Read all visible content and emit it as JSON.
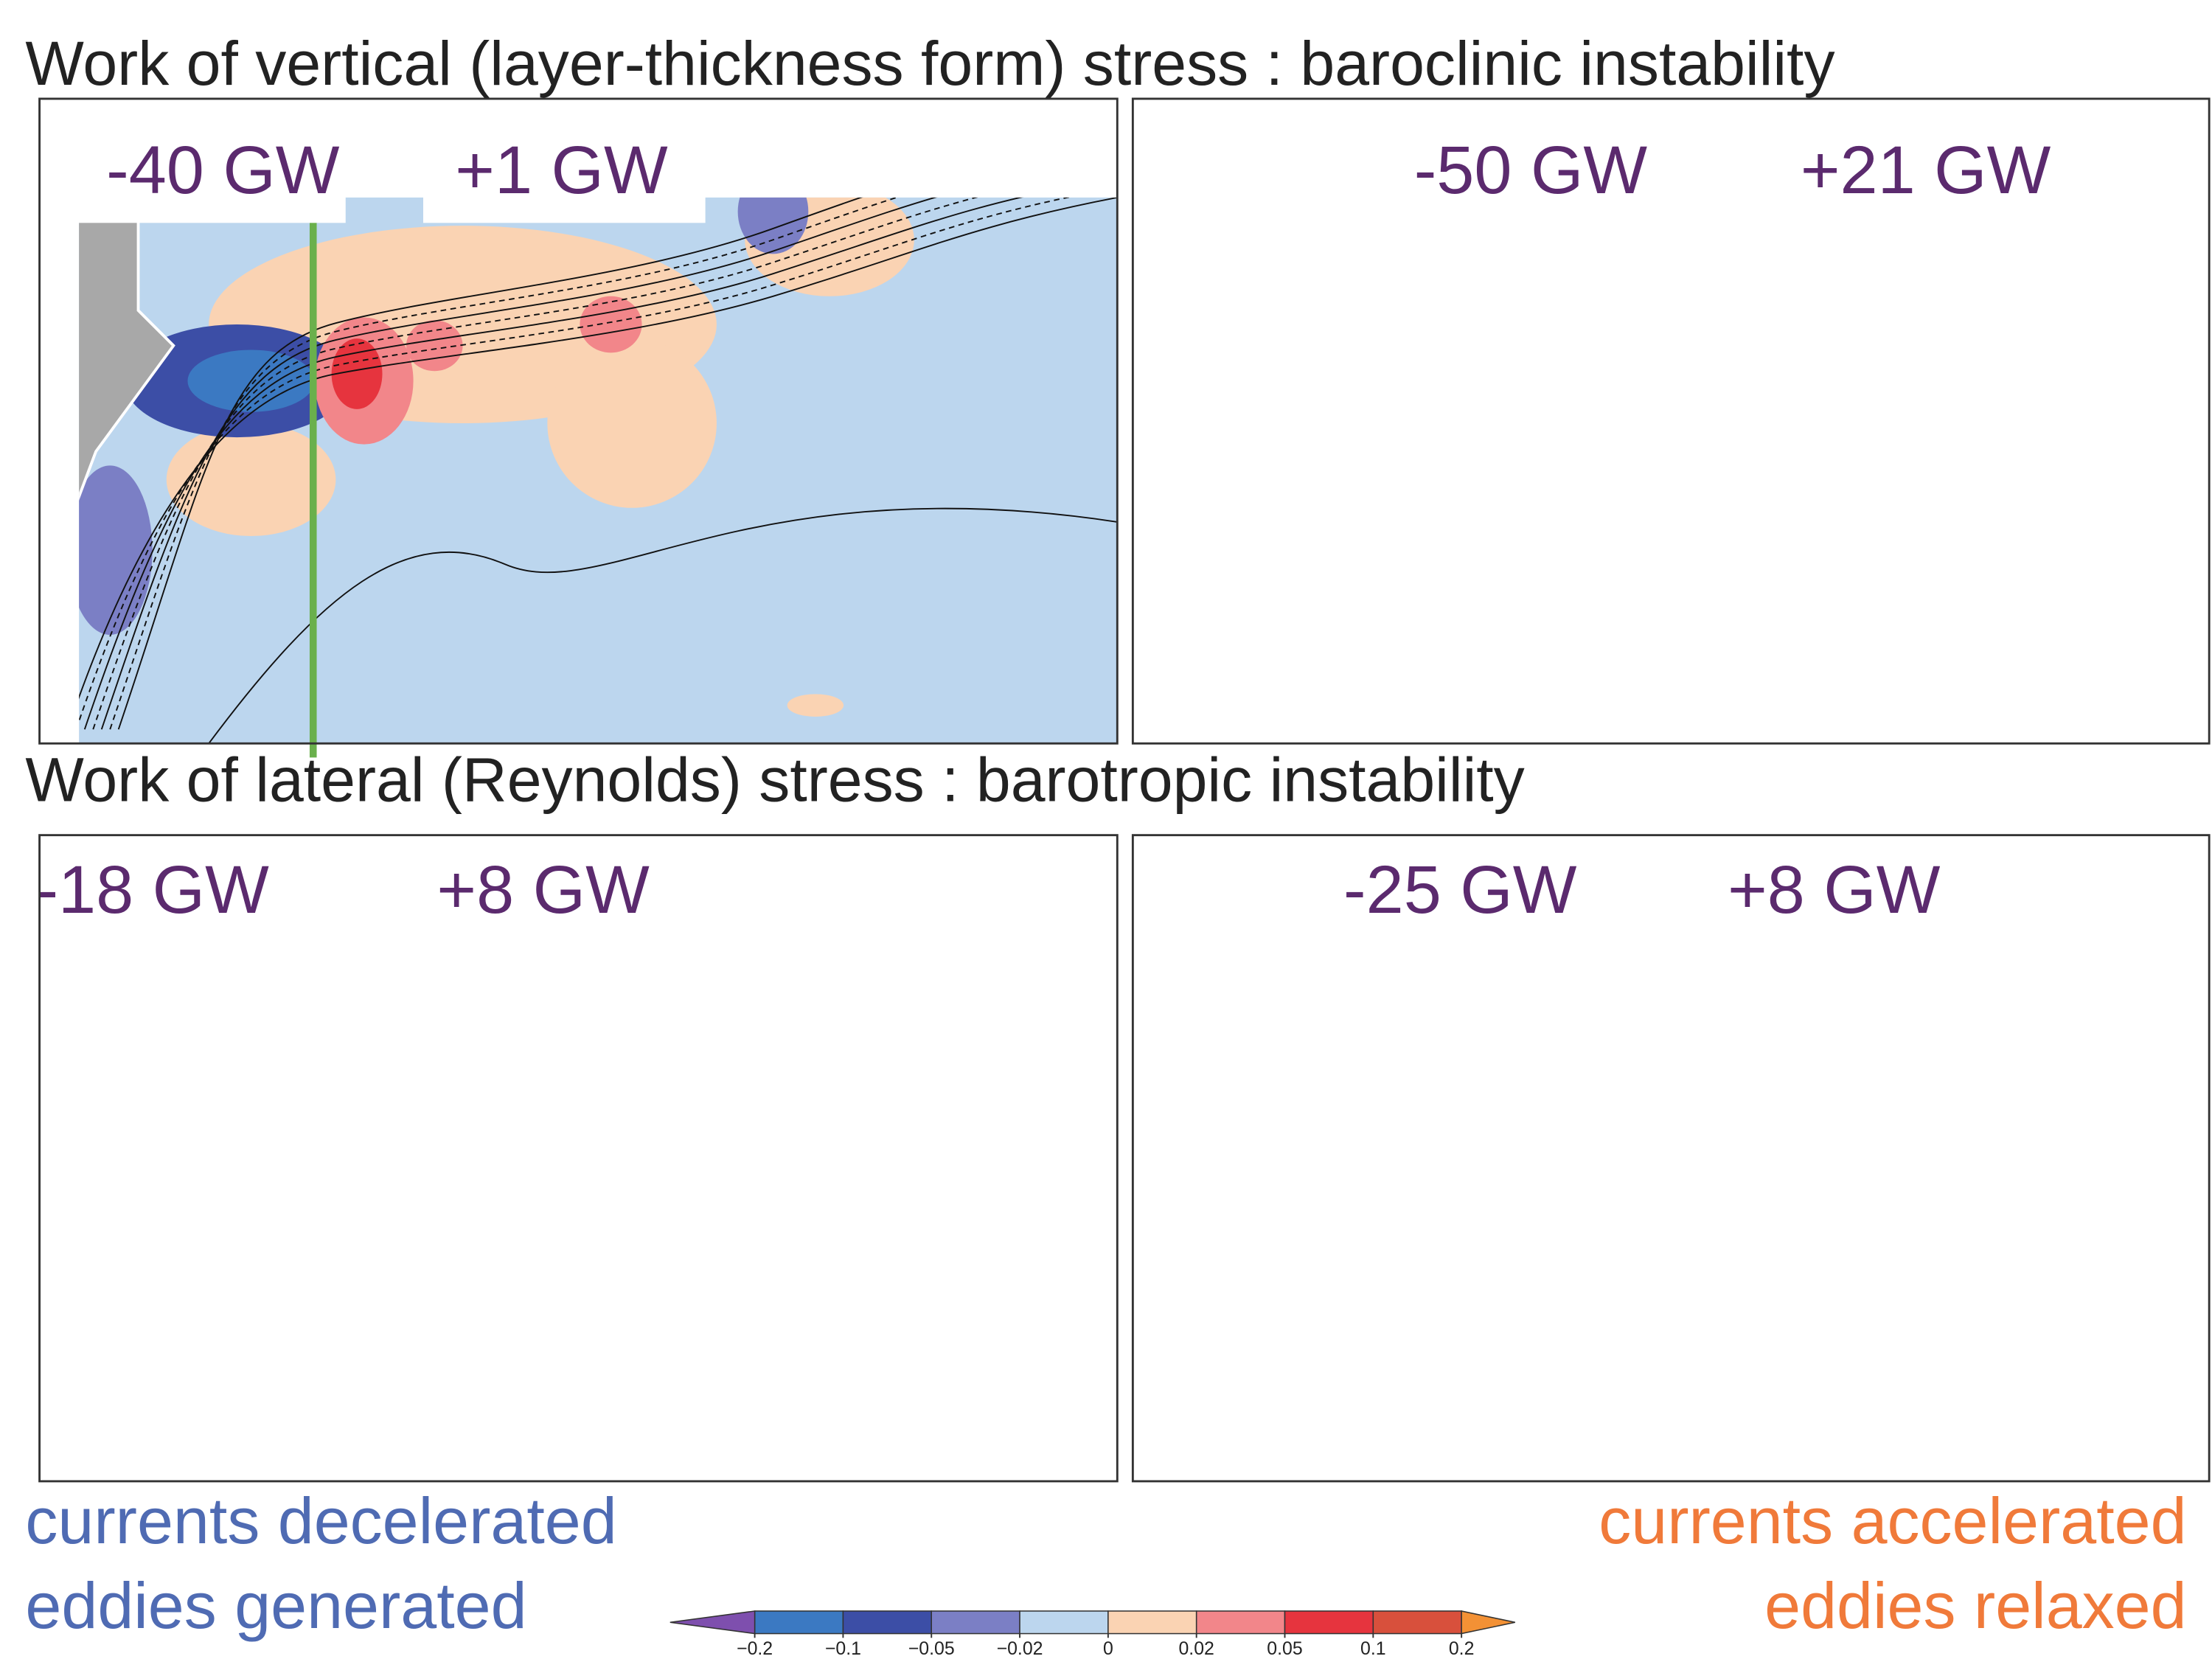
{
  "titles": {
    "top": "Work of vertical (layer-thickness form) stress : baroclinic instability",
    "bottom": "Work of lateral (Reynolds) stress : barotropic instability"
  },
  "panels": [
    {
      "left_label": "-40 GW",
      "right_label": "+1 GW"
    },
    {
      "left_label": "-50 GW",
      "right_label": "+21 GW"
    },
    {
      "left_label": "-18 GW",
      "right_label": "+8 GW"
    },
    {
      "left_label": "-25 GW",
      "right_label": "+8 GW"
    }
  ],
  "captions": {
    "left": [
      "currents decelerated",
      "eddies generated"
    ],
    "right": [
      "currents accelerated",
      "eddies relaxed"
    ]
  },
  "colorbar": {
    "ticks": [
      {
        "value": -0.2,
        "label": "−0.2"
      },
      {
        "value": -0.1,
        "label": "−0.1"
      },
      {
        "value": -0.05,
        "label": "−0.05"
      },
      {
        "value": -0.02,
        "label": "−0.02"
      },
      0,
      0.02,
      0.05,
      0.1,
      0.2
    ],
    "colors": [
      "#3b79c2",
      "#3c4ea6",
      "#7b7fc5",
      "#bcd6ee",
      "#fad3b3",
      "#f2868a",
      "#e6343e",
      "#d8503c"
    ],
    "under_color": "#7e4fae",
    "over_color": "#f39135"
  }
}
